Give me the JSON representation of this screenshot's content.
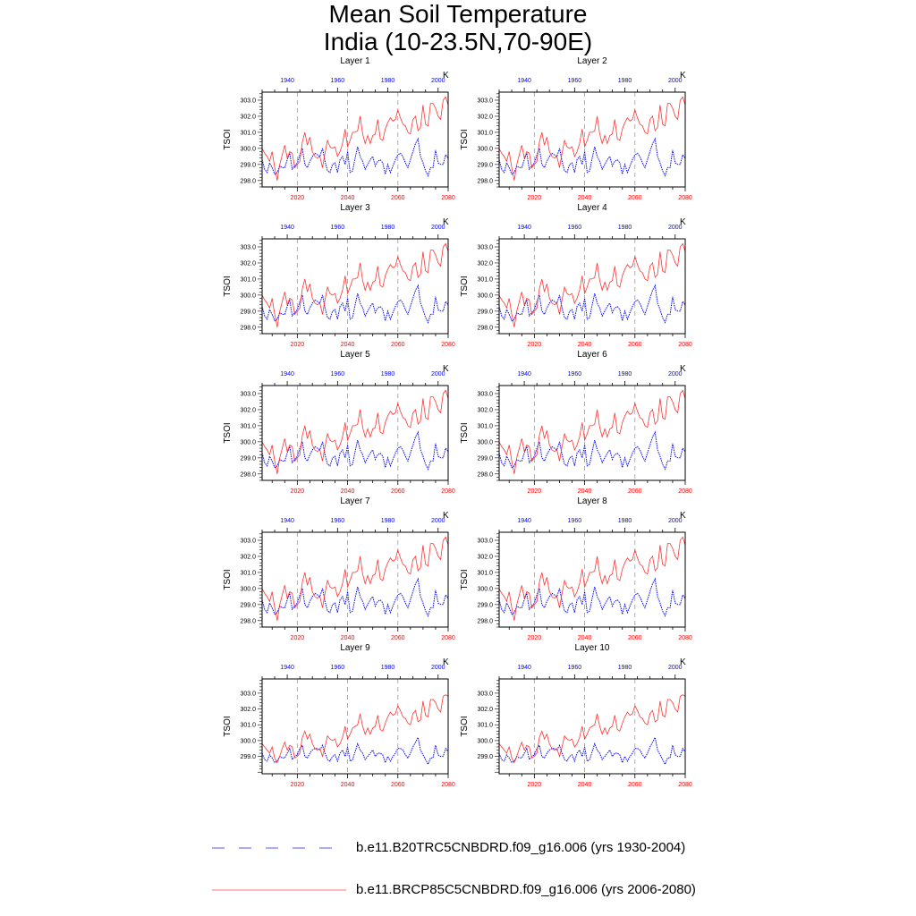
{
  "title_line1": "Mean Soil Temperature",
  "title_line2": "India (10-23.5N,70-90E)",
  "legend": [
    {
      "label": "b.e11.B20TRC5CNBDRD.f09_g16.006 (yrs 1930-2004)",
      "color": "#0000ff",
      "style": "dashed"
    },
    {
      "label": "b.e11.BRCP85C5CNBDRD.f09_g16.006 (yrs 2006-2080)",
      "color": "#ff0000",
      "style": "solid"
    }
  ],
  "chart_data": {
    "type": "line",
    "ylabel": "TSOI",
    "units_label": "K",
    "x_bottom": {
      "range": [
        2006,
        2080
      ],
      "ticks": [
        "2020",
        "2040",
        "2060",
        "2080"
      ],
      "color": "#ff0000"
    },
    "x_top": {
      "range": [
        1930,
        2004
      ],
      "ticks": [
        "1940",
        "1960",
        "1980",
        "2000"
      ],
      "color": "#0000ff"
    },
    "reference_lines_bottom_years": [
      2020,
      2040,
      2060
    ],
    "layers": [
      {
        "title": "Layer 1",
        "ylim": [
          297.6,
          303.5
        ],
        "yticks": [
          "298.0",
          "299.0",
          "300.0",
          "301.0",
          "302.0",
          "303.0"
        ],
        "series": "A"
      },
      {
        "title": "Layer 2",
        "ylim": [
          297.6,
          303.5
        ],
        "yticks": [
          "298.0",
          "299.0",
          "300.0",
          "301.0",
          "302.0",
          "303.0"
        ],
        "series": "A"
      },
      {
        "title": "Layer 3",
        "ylim": [
          297.6,
          303.5
        ],
        "yticks": [
          "298.0",
          "299.0",
          "300.0",
          "301.0",
          "302.0",
          "303.0"
        ],
        "series": "A"
      },
      {
        "title": "Layer 4",
        "ylim": [
          297.6,
          303.5
        ],
        "yticks": [
          "298.0",
          "299.0",
          "300.0",
          "301.0",
          "302.0",
          "303.0"
        ],
        "series": "A"
      },
      {
        "title": "Layer 5",
        "ylim": [
          297.6,
          303.5
        ],
        "yticks": [
          "298.0",
          "299.0",
          "300.0",
          "301.0",
          "302.0",
          "303.0"
        ],
        "series": "A"
      },
      {
        "title": "Layer 6",
        "ylim": [
          297.6,
          303.5
        ],
        "yticks": [
          "298.0",
          "299.0",
          "300.0",
          "301.0",
          "302.0",
          "303.0"
        ],
        "series": "A"
      },
      {
        "title": "Layer 7",
        "ylim": [
          297.6,
          303.5
        ],
        "yticks": [
          "298.0",
          "299.0",
          "300.0",
          "301.0",
          "302.0",
          "303.0"
        ],
        "series": "A"
      },
      {
        "title": "Layer 8",
        "ylim": [
          297.6,
          303.5
        ],
        "yticks": [
          "298.0",
          "299.0",
          "300.0",
          "301.0",
          "302.0",
          "303.0"
        ],
        "series": "A"
      },
      {
        "title": "Layer 9",
        "ylim": [
          297.9,
          303.9
        ],
        "yticks": [
          "299.0",
          "300.0",
          "301.0",
          "302.0",
          "303.0"
        ],
        "series": "B"
      },
      {
        "title": "Layer 10",
        "ylim": [
          297.9,
          303.9
        ],
        "yticks": [
          "299.0",
          "300.0",
          "301.0",
          "302.0",
          "303.0"
        ],
        "series": "B"
      }
    ],
    "series_sets": {
      "A": {
        "historical_1930_2004": [
          299.3,
          298.7,
          298.5,
          299.1,
          298.8,
          298.4,
          298.5,
          298.9,
          298.8,
          298.8,
          299.3,
          299.7,
          298.7,
          298.9,
          299.1,
          299.6,
          300.0,
          299.0,
          298.8,
          299.2,
          299.5,
          299.7,
          299.6,
          299.5,
          300.0,
          299.2,
          298.6,
          298.5,
          299.0,
          299.1,
          298.5,
          299.3,
          299.5,
          299.0,
          299.8,
          298.5,
          298.6,
          299.4,
          300.1,
          299.5,
          299.2,
          298.7,
          299.0,
          299.3,
          299.5,
          298.9,
          299.2,
          299.3,
          299.1,
          298.4,
          299.0,
          298.5,
          298.9,
          299.3,
          299.6,
          299.7,
          299.5,
          299.1,
          298.8,
          299.3,
          299.8,
          300.3,
          300.6,
          299.5,
          299.1,
          298.6,
          298.3,
          298.8,
          298.8,
          299.9,
          299.1,
          299.0,
          299.0,
          299.6,
          299.4
        ],
        "rcp85_2006_2080": [
          300.0,
          299.7,
          299.5,
          299.2,
          299.8,
          298.8,
          298.0,
          299.0,
          299.6,
          300.2,
          299.4,
          299.8,
          299.7,
          298.8,
          299.0,
          299.2,
          300.4,
          301.0,
          300.2,
          300.7,
          299.8,
          299.5,
          299.4,
          299.5,
          298.8,
          299.7,
          300.5,
          300.1,
          300.0,
          300.1,
          299.5,
          299.8,
          300.3,
          301.2,
          300.1,
          300.5,
          301.0,
          301.0,
          301.1,
          302.0,
          300.9,
          300.3,
          300.8,
          300.3,
          300.8,
          300.9,
          301.8,
          300.6,
          300.5,
          301.2,
          301.6,
          301.9,
          301.7,
          301.8,
          302.4,
          301.9,
          301.5,
          301.4,
          301.0,
          300.9,
          301.8,
          302.0,
          301.1,
          301.3,
          302.7,
          301.5,
          301.4,
          302.8,
          302.8,
          302.5,
          302.0,
          301.8,
          303.0,
          303.2,
          302.7
        ]
      },
      "B": {
        "historical_1930_2004": [
          299.2,
          298.8,
          298.7,
          299.1,
          298.9,
          298.6,
          298.7,
          299.0,
          298.9,
          298.9,
          299.2,
          299.5,
          298.8,
          299.0,
          299.1,
          299.5,
          299.7,
          299.0,
          298.9,
          299.2,
          299.4,
          299.5,
          299.5,
          299.4,
          299.7,
          299.2,
          298.8,
          298.7,
          299.0,
          299.1,
          298.7,
          299.2,
          299.4,
          299.0,
          299.6,
          298.7,
          298.8,
          299.3,
          299.8,
          299.4,
          299.2,
          298.8,
          299.0,
          299.2,
          299.4,
          299.0,
          299.2,
          299.2,
          299.1,
          298.6,
          299.0,
          298.7,
          299.0,
          299.2,
          299.5,
          299.5,
          299.4,
          299.1,
          298.9,
          299.2,
          299.6,
          299.9,
          300.2,
          299.4,
          299.1,
          298.8,
          298.5,
          298.9,
          298.9,
          299.7,
          299.1,
          299.0,
          299.0,
          299.5,
          299.3
        ],
        "rcp85_2006_2080": [
          299.8,
          299.6,
          299.4,
          299.2,
          299.6,
          298.9,
          298.6,
          299.0,
          299.5,
          299.9,
          299.4,
          299.7,
          299.6,
          298.9,
          299.0,
          299.2,
          300.2,
          300.6,
          300.1,
          300.4,
          299.8,
          299.5,
          299.4,
          299.5,
          299.0,
          299.6,
          300.3,
          300.1,
          300.0,
          300.1,
          299.6,
          299.8,
          300.2,
          300.9,
          300.1,
          300.4,
          300.8,
          300.9,
          301.0,
          301.7,
          300.9,
          300.4,
          300.8,
          300.4,
          300.8,
          300.9,
          301.6,
          300.7,
          300.6,
          301.1,
          301.5,
          301.8,
          301.6,
          301.7,
          302.2,
          301.9,
          301.5,
          301.4,
          301.1,
          301.0,
          301.7,
          301.9,
          301.2,
          301.3,
          302.5,
          301.6,
          301.5,
          302.6,
          302.6,
          302.4,
          302.0,
          301.8,
          302.8,
          302.9,
          302.8
        ]
      }
    }
  }
}
